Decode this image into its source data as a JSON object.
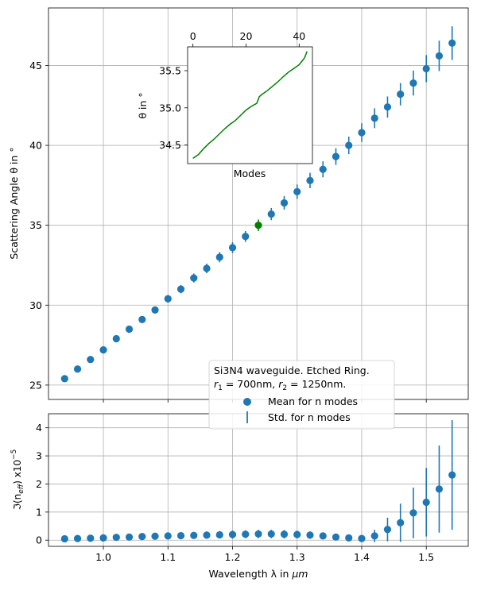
{
  "chart_data": [
    {
      "id": "main",
      "type": "scatter",
      "ylabel": "Scattering Angle θ in °",
      "xlim": [
        0.915,
        1.565
      ],
      "ylim": [
        24.1,
        48.6
      ],
      "xticks": [
        1.0,
        1.1,
        1.2,
        1.3,
        1.4,
        1.5
      ],
      "yticks": [
        25,
        30,
        35,
        40,
        45
      ],
      "ytick_labels": [
        "25",
        "30",
        "35",
        "40",
        "45"
      ],
      "grid": true,
      "colors": {
        "mean": "#1f77b4",
        "highlight": "#008000"
      },
      "highlight_index": 15,
      "x": [
        0.94,
        0.96,
        0.98,
        1.0,
        1.02,
        1.04,
        1.06,
        1.08,
        1.1,
        1.12,
        1.14,
        1.16,
        1.18,
        1.2,
        1.22,
        1.24,
        1.26,
        1.28,
        1.3,
        1.32,
        1.34,
        1.36,
        1.38,
        1.4,
        1.42,
        1.44,
        1.46,
        1.48,
        1.5,
        1.52,
        1.54
      ],
      "series": [
        {
          "name": "Mean for n modes",
          "values": [
            25.4,
            26.0,
            26.6,
            27.2,
            27.9,
            28.5,
            29.1,
            29.7,
            30.4,
            31.0,
            31.7,
            32.3,
            33.0,
            33.6,
            34.3,
            35.0,
            35.7,
            36.4,
            37.1,
            37.8,
            38.5,
            39.3,
            40.0,
            40.8,
            41.7,
            42.4,
            43.2,
            43.9,
            44.8,
            45.6,
            46.4
          ]
        },
        {
          "name": "Std. for n modes",
          "values": [
            0.12,
            0.12,
            0.14,
            0.16,
            0.18,
            0.2,
            0.22,
            0.22,
            0.24,
            0.26,
            0.28,
            0.3,
            0.32,
            0.34,
            0.34,
            0.36,
            0.38,
            0.42,
            0.45,
            0.48,
            0.5,
            0.52,
            0.55,
            0.58,
            0.62,
            0.66,
            0.7,
            0.78,
            0.85,
            0.95,
            1.05
          ]
        }
      ],
      "legend": {
        "title": "Si3N4 waveguide. Etched Ring.",
        "title_line2_parts": [
          "r",
          "1",
          " = 700nm, ",
          "r",
          "2",
          " = 1250nm."
        ],
        "placement": "lower-center"
      }
    },
    {
      "id": "inset",
      "type": "line",
      "xlabel": "Modes",
      "ylabel": "θ in °",
      "xlim": [
        -2,
        45
      ],
      "ylim": [
        34.25,
        35.82
      ],
      "xticks": [
        0,
        20,
        40
      ],
      "yticks": [
        34.5,
        35.0,
        35.5
      ],
      "ytick_labels": [
        "34.5",
        "35.0",
        "35.5"
      ],
      "color": "#008000",
      "x": [
        0,
        2,
        4,
        6,
        8,
        10,
        12,
        14,
        16,
        18,
        20,
        22,
        24,
        25,
        26,
        28,
        30,
        32,
        34,
        36,
        38,
        40,
        42,
        43
      ],
      "values": [
        34.32,
        34.37,
        34.45,
        34.52,
        34.58,
        34.65,
        34.72,
        34.78,
        34.83,
        34.9,
        34.97,
        35.02,
        35.06,
        35.15,
        35.18,
        35.23,
        35.29,
        35.35,
        35.42,
        35.48,
        35.53,
        35.58,
        35.67,
        35.76
      ]
    },
    {
      "id": "bottom",
      "type": "scatter",
      "xlabel_parts": [
        "Wavelength λ in ",
        "μm"
      ],
      "ylabel_parts": [
        "ℑ(n",
        "eff",
        ") x10",
        "−5"
      ],
      "xlim": [
        0.915,
        1.565
      ],
      "ylim": [
        -0.22,
        4.5
      ],
      "xticks": [
        1.0,
        1.1,
        1.2,
        1.3,
        1.4,
        1.5
      ],
      "xtick_labels": [
        "1.0",
        "1.1",
        "1.2",
        "1.3",
        "1.4",
        "1.5"
      ],
      "yticks": [
        0,
        1,
        2,
        3,
        4
      ],
      "ytick_labels": [
        "0",
        "1",
        "2",
        "3",
        "4"
      ],
      "grid": true,
      "color": "#1f77b4",
      "x": [
        0.94,
        0.96,
        0.98,
        1.0,
        1.02,
        1.04,
        1.06,
        1.08,
        1.1,
        1.12,
        1.14,
        1.16,
        1.18,
        1.2,
        1.22,
        1.24,
        1.26,
        1.28,
        1.3,
        1.32,
        1.34,
        1.36,
        1.38,
        1.4,
        1.42,
        1.44,
        1.46,
        1.48,
        1.5,
        1.52,
        1.54
      ],
      "mean": [
        0.05,
        0.06,
        0.07,
        0.08,
        0.1,
        0.11,
        0.13,
        0.14,
        0.15,
        0.16,
        0.17,
        0.18,
        0.19,
        0.2,
        0.21,
        0.22,
        0.22,
        0.21,
        0.2,
        0.18,
        0.15,
        0.11,
        0.08,
        0.06,
        0.15,
        0.38,
        0.62,
        0.97,
        1.35,
        1.82,
        2.32
      ],
      "std": [
        0.04,
        0.05,
        0.06,
        0.07,
        0.08,
        0.09,
        0.1,
        0.1,
        0.11,
        0.12,
        0.12,
        0.13,
        0.13,
        0.14,
        0.14,
        0.15,
        0.15,
        0.15,
        0.14,
        0.13,
        0.11,
        0.09,
        0.07,
        0.06,
        0.22,
        0.42,
        0.68,
        0.9,
        1.22,
        1.55,
        1.95
      ]
    }
  ]
}
